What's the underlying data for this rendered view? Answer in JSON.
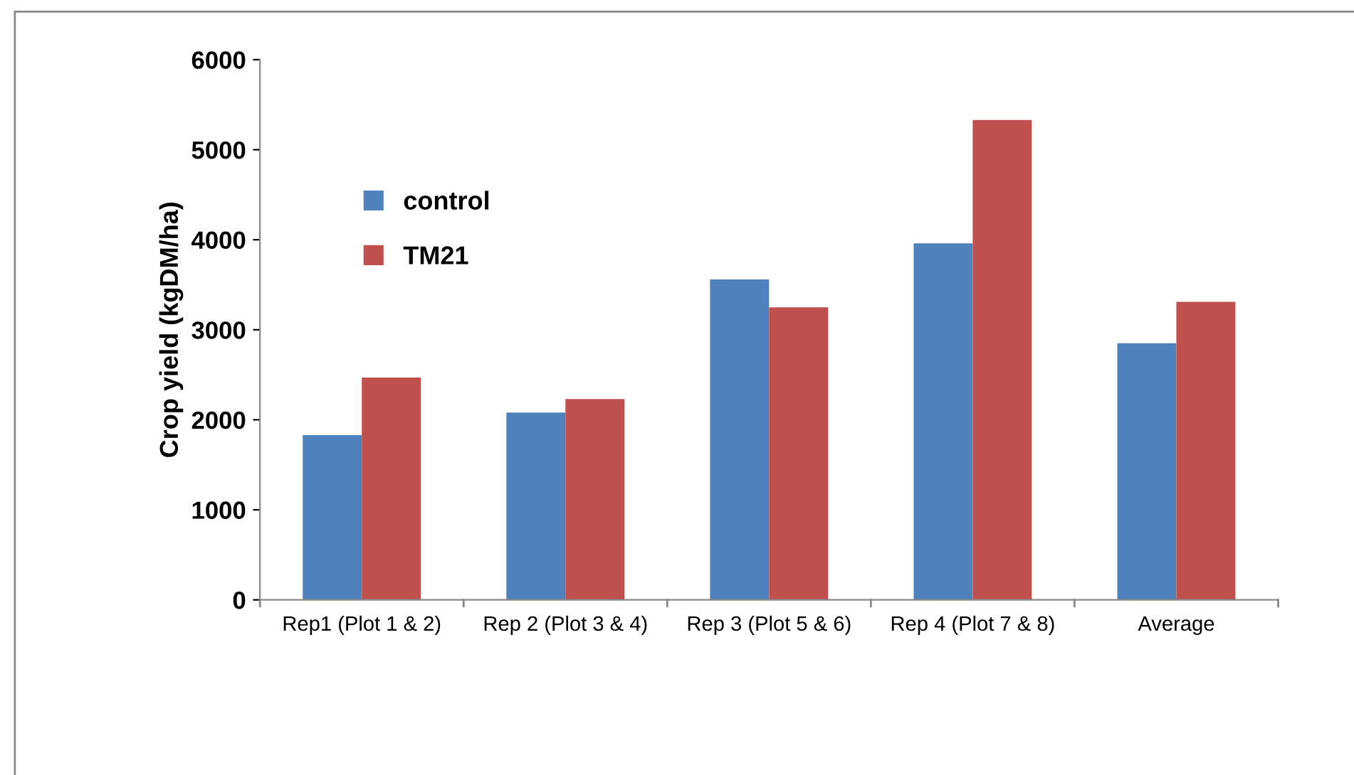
{
  "chart_data": {
    "type": "bar",
    "ylabel": "Crop yield (kgDM/ha)",
    "categories": [
      "Rep1 (Plot 1 & 2)",
      "Rep 2 (Plot 3 & 4)",
      "Rep 3 (Plot 5 & 6)",
      "Rep 4 (Plot 7 & 8)",
      "Average"
    ],
    "series": [
      {
        "name": "control",
        "color": "#4f81bd",
        "values": [
          1830,
          2080,
          3560,
          3960,
          2850
        ]
      },
      {
        "name": "TM21",
        "color": "#c0504d",
        "values": [
          2470,
          2230,
          3250,
          5330,
          3310
        ]
      }
    ],
    "ylim": [
      0,
      6000
    ],
    "yticks": [
      0,
      1000,
      2000,
      3000,
      4000,
      5000,
      6000
    ],
    "grid": false,
    "legend": "top left"
  }
}
